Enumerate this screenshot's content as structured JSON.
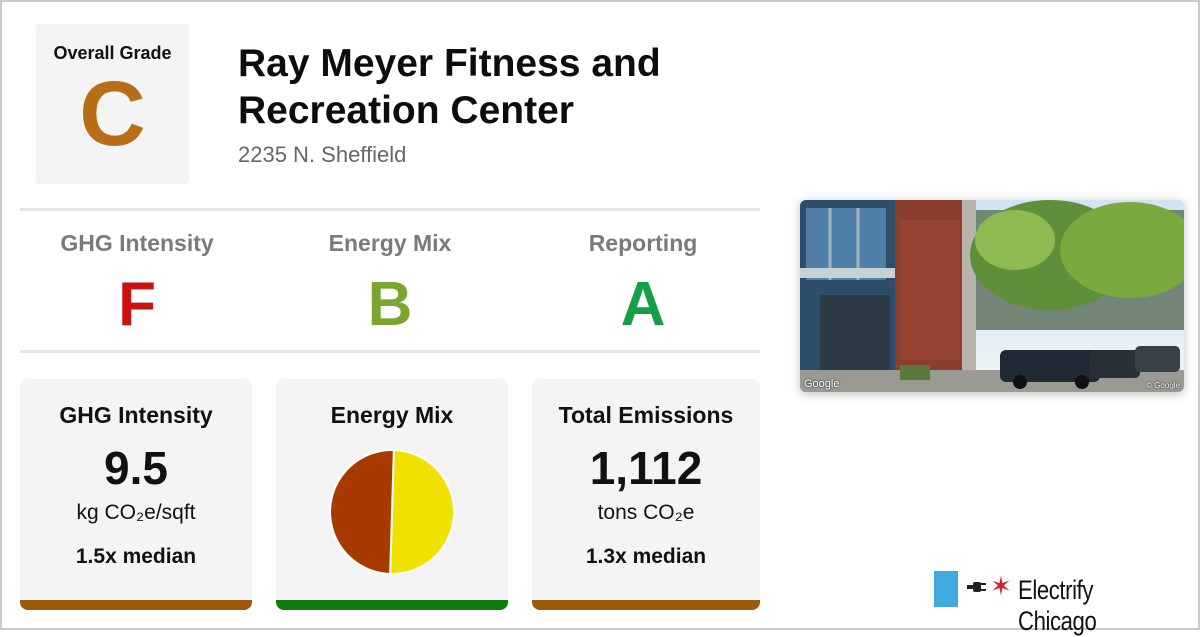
{
  "overall": {
    "label": "Overall Grade",
    "grade": "C",
    "grade_color": "#b86e16"
  },
  "building": {
    "name": "Ray Meyer Fitness and Recreation Center",
    "address": "2235 N. Sheffield"
  },
  "sub_grades": [
    {
      "label": "GHG Intensity",
      "grade": "F",
      "color": "#cc1111"
    },
    {
      "label": "Energy Mix",
      "grade": "B",
      "color": "#7aa62e"
    },
    {
      "label": "Reporting",
      "grade": "A",
      "color": "#15a047"
    }
  ],
  "cards": {
    "ghg": {
      "title": "GHG Intensity",
      "value": "9.5",
      "unit": "kg CO₂e/sqft",
      "median": "1.5x median",
      "bar_color": "#9a5a08"
    },
    "mix": {
      "title": "Energy Mix",
      "bar_color": "#0d7d0d",
      "pie": [
        {
          "fraction": 0.5,
          "color": "#f0e100"
        },
        {
          "fraction": 0.5,
          "color": "#a63a00"
        }
      ]
    },
    "emissions": {
      "title": "Total Emissions",
      "value": "1,112",
      "unit": "tons CO₂e",
      "median": "1.3x median",
      "bar_color": "#9a5a08"
    }
  },
  "photo": {
    "credit": "Google",
    "credit_small": "© Google"
  },
  "brand": {
    "name": "Electrify Chicago",
    "plug_icon": "plug-icon",
    "star_icon": "chicago-star-icon"
  }
}
